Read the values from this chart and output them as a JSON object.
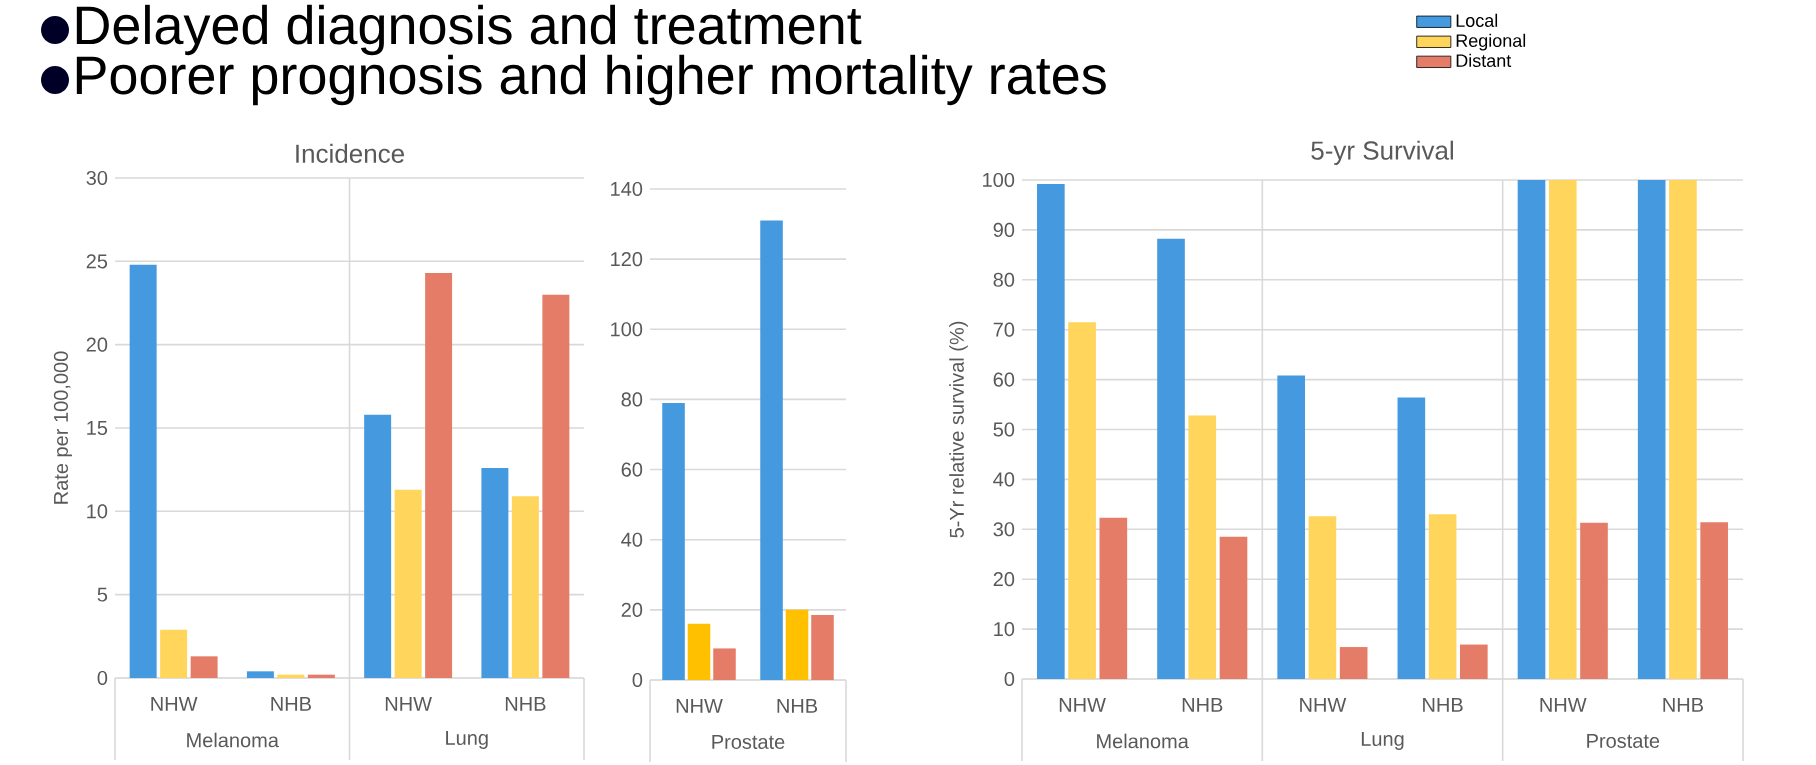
{
  "chart_data": [
    {
      "type": "other",
      "annotations": [
        "Delayed diagnosis and treatment",
        "Poorer prognosis and higher mortality rates"
      ]
    },
    {
      "type": "bar",
      "title": "Incidence",
      "ylabel": "Rate per 100,000",
      "categories": [
        "NHW",
        "NHB",
        "NHW",
        "NHB"
      ],
      "annotations": [
        "Melanoma",
        "Lung"
      ],
      "ylim": [
        0,
        30
      ],
      "yticks": [
        0,
        5,
        10,
        15,
        20,
        25,
        30
      ],
      "grid": "y",
      "series": [
        {
          "color": "#4599df",
          "values": [
            24.8,
            0.4,
            15.8,
            12.6
          ]
        },
        {
          "color": "#ffd55c",
          "values": [
            2.9,
            0.2,
            11.3,
            10.9
          ]
        },
        {
          "color": "#e57c67",
          "values": [
            1.3,
            0.2,
            24.3,
            23.0
          ]
        }
      ]
    },
    {
      "type": "bar",
      "categories": [
        "NHW",
        "NHB"
      ],
      "annotations": [
        "Prostate"
      ],
      "ylim": [
        0,
        140
      ],
      "yticks": [
        0,
        20,
        40,
        60,
        80,
        100,
        120,
        140
      ],
      "grid": "y",
      "series": [
        {
          "color": "#4599df",
          "values": [
            79,
            131
          ]
        },
        {
          "color": "#ffc000",
          "values": [
            16,
            20
          ]
        },
        {
          "color": "#e57c67",
          "values": [
            9,
            18.5
          ]
        }
      ]
    },
    {
      "type": "bar",
      "title": "5-yr Survival",
      "ylabel": "5-Yr relative survival (%)",
      "categories": [
        "NHW",
        "NHB",
        "NHW",
        "NHB",
        "NHW",
        "NHB"
      ],
      "annotations": [
        "Melanoma",
        "Lung",
        "Prostate"
      ],
      "ylim": [
        0,
        100
      ],
      "yticks": [
        0,
        10,
        20,
        30,
        40,
        50,
        60,
        70,
        80,
        90,
        100
      ],
      "grid": "y",
      "legend": "top right",
      "series": [
        {
          "name": "Local",
          "color": "#4599df",
          "values": [
            99.2,
            88.2,
            60.8,
            56.4,
            100,
            100
          ]
        },
        {
          "name": "Regional",
          "color": "#ffd55c",
          "values": [
            71.5,
            52.8,
            32.6,
            33.0,
            100,
            100
          ]
        },
        {
          "name": "Distant",
          "color": "#e57c67",
          "values": [
            32.3,
            28.5,
            6.4,
            6.9,
            31.3,
            31.4
          ]
        }
      ]
    }
  ]
}
